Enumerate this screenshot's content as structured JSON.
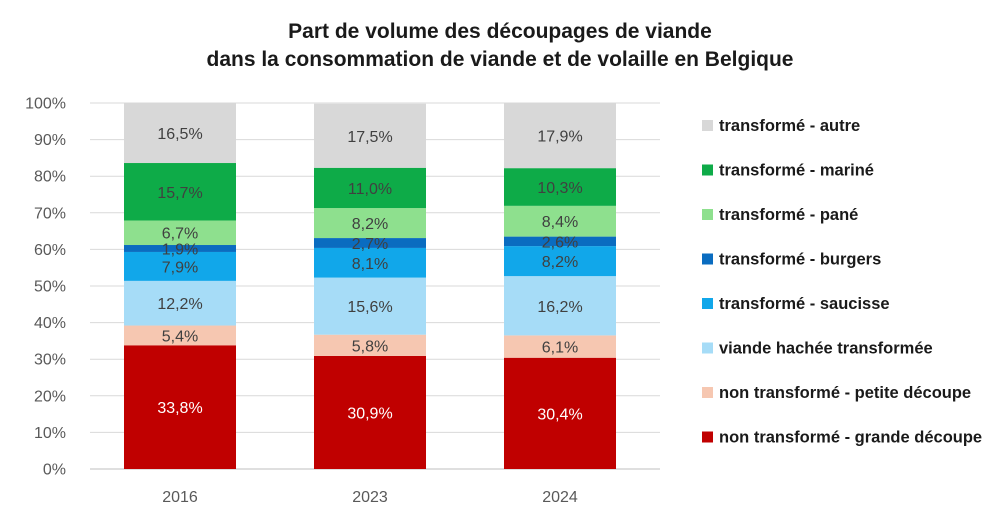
{
  "chart_data": {
    "type": "bar",
    "stacked": true,
    "title_lines": [
      "Part de volume des découpages de viande",
      "dans la consommation de viande et de volaille en Belgique"
    ],
    "categories": [
      "2016",
      "2023",
      "2024"
    ],
    "y_ticks": [
      "0%",
      "10%",
      "20%",
      "30%",
      "40%",
      "50%",
      "60%",
      "70%",
      "80%",
      "90%",
      "100%"
    ],
    "ylim": [
      0,
      100
    ],
    "legend_position": "right",
    "series": [
      {
        "name": "non transformé - grande découpe",
        "color": "#c00000",
        "label_color": "#ffffff",
        "values": [
          33.8,
          30.9,
          30.4
        ],
        "labels": [
          "33,8%",
          "30,9%",
          "30,4%"
        ]
      },
      {
        "name": "non transformé - petite découpe",
        "color": "#f6c7b1",
        "label_color": "#404040",
        "values": [
          5.4,
          5.8,
          6.1
        ],
        "labels": [
          "5,4%",
          "5,8%",
          "6,1%"
        ]
      },
      {
        "name": "viande hachée transformée",
        "color": "#a6dcf7",
        "label_color": "#404040",
        "values": [
          12.2,
          15.6,
          16.2
        ],
        "labels": [
          "12,2%",
          "15,6%",
          "16,2%"
        ]
      },
      {
        "name": "transformé - saucisse",
        "color": "#11a7ea",
        "label_color": "#404040",
        "values": [
          7.9,
          8.1,
          8.2
        ],
        "labels": [
          "7,9%",
          "8,1%",
          "8,2%"
        ]
      },
      {
        "name": "transformé - burgers",
        "color": "#0a6cc0",
        "label_color": "#404040",
        "values": [
          1.9,
          2.7,
          2.6
        ],
        "labels": [
          "1,9%",
          "2,7%",
          "2,6%"
        ]
      },
      {
        "name": "transformé - pané",
        "color": "#8ee08e",
        "label_color": "#404040",
        "values": [
          6.7,
          8.2,
          8.4
        ],
        "labels": [
          "6,7%",
          "8,2%",
          "8,4%"
        ]
      },
      {
        "name": "transformé - mariné",
        "color": "#0eab48",
        "label_color": "#404040",
        "values": [
          15.7,
          11.0,
          10.3
        ],
        "labels": [
          "15,7%",
          "11,0%",
          "10,3%"
        ]
      },
      {
        "name": "transformé - autre",
        "color": "#d8d8d8",
        "label_color": "#404040",
        "values": [
          16.5,
          17.5,
          17.9
        ],
        "labels": [
          "16,5%",
          "17,5%",
          "17,9%"
        ]
      }
    ]
  }
}
